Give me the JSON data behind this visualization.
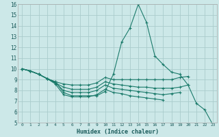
{
  "xlabel": "Humidex (Indice chaleur)",
  "background_color": "#cce8e8",
  "grid_color": "#aacccc",
  "line_color": "#1a7a6a",
  "xlim": [
    -0.5,
    23.5
  ],
  "ylim": [
    5,
    16
  ],
  "xticks": [
    0,
    1,
    2,
    3,
    4,
    5,
    6,
    7,
    8,
    9,
    10,
    11,
    12,
    13,
    14,
    15,
    16,
    17,
    18,
    19,
    20,
    21,
    22,
    23
  ],
  "yticks": [
    5,
    6,
    7,
    8,
    9,
    10,
    11,
    12,
    13,
    14,
    15,
    16
  ],
  "lines": [
    {
      "x": [
        0,
        1,
        2,
        3,
        4,
        5,
        6,
        7,
        8,
        9,
        10,
        11,
        12,
        13,
        14,
        15,
        16,
        17,
        18,
        19,
        20,
        21,
        22,
        23
      ],
      "y": [
        10.0,
        9.8,
        9.5,
        9.1,
        8.8,
        7.8,
        7.5,
        7.5,
        7.5,
        7.5,
        7.9,
        9.5,
        12.5,
        13.8,
        16.0,
        14.3,
        11.2,
        10.4,
        9.7,
        9.5,
        8.5,
        6.8,
        6.2,
        4.8
      ]
    },
    {
      "x": [
        0,
        1,
        2,
        3,
        4,
        5,
        6,
        7,
        8,
        9,
        10,
        11,
        12,
        13,
        14,
        15,
        16,
        17,
        18,
        19,
        20
      ],
      "y": [
        10.0,
        9.8,
        9.5,
        9.1,
        8.8,
        8.6,
        8.5,
        8.5,
        8.5,
        8.7,
        9.2,
        9.0,
        9.0,
        9.0,
        9.0,
        9.0,
        9.0,
        9.0,
        9.0,
        9.2,
        9.3
      ]
    },
    {
      "x": [
        0,
        1,
        2,
        3,
        4,
        5,
        6,
        7,
        8,
        9,
        10,
        11,
        12,
        13,
        14,
        15,
        16,
        17,
        18,
        19,
        20
      ],
      "y": [
        10.0,
        9.8,
        9.5,
        9.1,
        8.7,
        8.3,
        8.1,
        8.1,
        8.1,
        8.3,
        8.8,
        8.6,
        8.5,
        8.4,
        8.3,
        8.3,
        8.2,
        8.2,
        8.2,
        8.3,
        8.5
      ]
    },
    {
      "x": [
        0,
        1,
        2,
        3,
        4,
        5,
        6,
        7,
        8,
        9,
        10,
        11,
        12,
        13,
        14,
        15,
        16,
        17,
        18,
        19
      ],
      "y": [
        10.0,
        9.8,
        9.5,
        9.1,
        8.7,
        8.0,
        7.8,
        7.8,
        7.8,
        8.0,
        8.5,
        8.2,
        8.1,
        8.0,
        7.9,
        7.8,
        7.7,
        7.6,
        7.7,
        7.8
      ]
    },
    {
      "x": [
        0,
        1,
        2,
        3,
        4,
        5,
        6,
        7,
        8,
        9,
        10,
        11,
        12,
        13,
        14,
        15,
        16,
        17
      ],
      "y": [
        10.0,
        9.8,
        9.5,
        9.1,
        8.6,
        7.6,
        7.4,
        7.4,
        7.4,
        7.6,
        8.1,
        7.8,
        7.7,
        7.5,
        7.4,
        7.3,
        7.2,
        7.1
      ]
    }
  ]
}
